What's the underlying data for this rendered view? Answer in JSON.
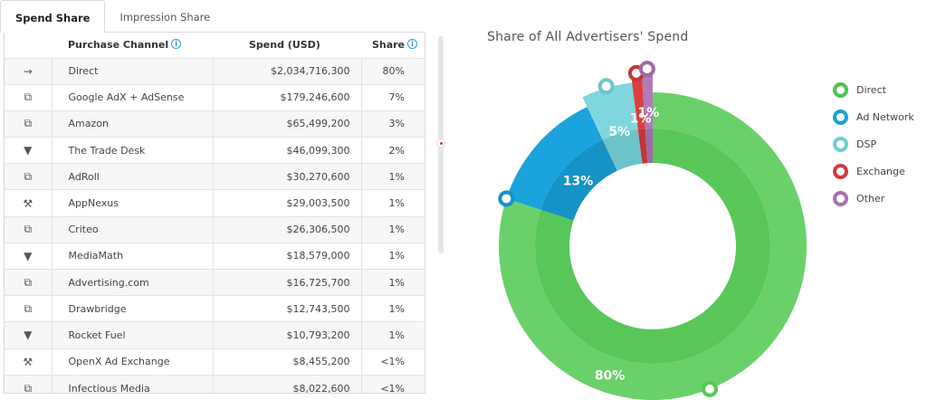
{
  "tabs": [
    {
      "label": "Spend Share",
      "active": true
    },
    {
      "label": "Impression Share",
      "active": false
    }
  ],
  "table": {
    "headers": {
      "channel": "Purchase Channel",
      "spend": "Spend (USD)",
      "share": "Share"
    },
    "rows": [
      {
        "icon": "arrow-right-icon",
        "glyph": "→",
        "channel": "Direct",
        "spend": "$2,034,716,300",
        "share": "80%"
      },
      {
        "icon": "ad-network-icon",
        "glyph": "⧉",
        "channel": "Google AdX + AdSense",
        "spend": "$179,246,600",
        "share": "7%"
      },
      {
        "icon": "ad-network-icon",
        "glyph": "⧉",
        "channel": "Amazon",
        "spend": "$65,499,200",
        "share": "3%"
      },
      {
        "icon": "funnel-icon",
        "glyph": "▼",
        "channel": "The Trade Desk",
        "spend": "$46,099,300",
        "share": "2%"
      },
      {
        "icon": "ad-network-icon",
        "glyph": "⧉",
        "channel": "AdRoll",
        "spend": "$30,270,600",
        "share": "1%"
      },
      {
        "icon": "gavel-icon",
        "glyph": "⚒",
        "channel": "AppNexus",
        "spend": "$29,003,500",
        "share": "1%"
      },
      {
        "icon": "ad-network-icon",
        "glyph": "⧉",
        "channel": "Criteo",
        "spend": "$26,306,500",
        "share": "1%"
      },
      {
        "icon": "funnel-icon",
        "glyph": "▼",
        "channel": "MediaMath",
        "spend": "$18,579,000",
        "share": "1%"
      },
      {
        "icon": "ad-network-icon",
        "glyph": "⧉",
        "channel": "Advertising.com",
        "spend": "$16,725,700",
        "share": "1%"
      },
      {
        "icon": "ad-network-icon",
        "glyph": "⧉",
        "channel": "Drawbridge",
        "spend": "$12,743,500",
        "share": "1%"
      },
      {
        "icon": "funnel-icon",
        "glyph": "▼",
        "channel": "Rocket Fuel",
        "spend": "$10,793,200",
        "share": "1%"
      },
      {
        "icon": "gavel-icon",
        "glyph": "⚒",
        "channel": "OpenX Ad Exchange",
        "spend": "$8,455,200",
        "share": "<1%"
      },
      {
        "icon": "ad-network-icon",
        "glyph": "⧉",
        "channel": "Infectious Media",
        "spend": "$8,022,600",
        "share": "<1%"
      }
    ]
  },
  "chart_data": {
    "type": "pie",
    "title": "Share of All Advertisers' Spend",
    "categories": [
      "Direct",
      "Ad Network",
      "DSP",
      "Exchange",
      "Other"
    ],
    "values": [
      80,
      13,
      5,
      1,
      1
    ],
    "labels": [
      "80%",
      "13%",
      "5%",
      "1%",
      "1%"
    ],
    "colors": [
      "#6ad06a",
      "#1aa3dc",
      "#7fd6dc",
      "#d94040",
      "#b27ab8"
    ],
    "inner_colors": [
      "#58c658",
      "#1592c6",
      "#6cc4ca",
      "#c33636",
      "#a06aa6"
    ],
    "legend": "right"
  },
  "legend": {
    "items": [
      {
        "label": "Direct",
        "color": "#4cc44c"
      },
      {
        "label": "Ad Network",
        "color": "#1a9fd6"
      },
      {
        "label": "DSP",
        "color": "#70ccd2"
      },
      {
        "label": "Exchange",
        "color": "#d23a3a"
      },
      {
        "label": "Other",
        "color": "#a870b0"
      }
    ]
  }
}
